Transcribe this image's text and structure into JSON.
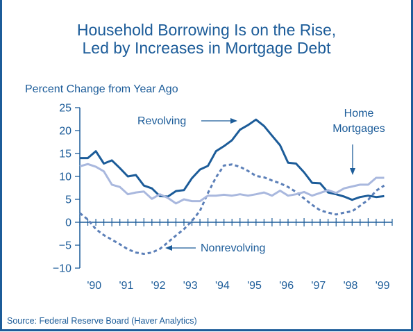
{
  "chart_data": {
    "type": "line",
    "title": [
      "Household Borrowing Is on the Rise,",
      "Led by Increases in Mortgage Debt"
    ],
    "ylabel": "Percent Change from Year Ago",
    "xlabel": "",
    "source": "Source: Federal Reserve Board (Haver Analytics)",
    "ylim": [
      -10,
      25
    ],
    "xlim": [
      1990.0,
      1999.75
    ],
    "yticks": [
      -10,
      -5,
      0,
      5,
      10,
      15,
      20,
      25
    ],
    "ytick_labels": [
      "−10",
      "−5",
      "0",
      "5",
      "10",
      "15",
      "20",
      "25"
    ],
    "xtick_labels": [
      "'90",
      "'91",
      "'92",
      "'93",
      "'94",
      "'95",
      "'96",
      "'97",
      "'98",
      "'99"
    ],
    "x": [
      1990.0,
      1990.25,
      1990.5,
      1990.75,
      1991.0,
      1991.25,
      1991.5,
      1991.75,
      1992.0,
      1992.25,
      1992.5,
      1992.75,
      1993.0,
      1993.25,
      1993.5,
      1993.75,
      1994.0,
      1994.25,
      1994.5,
      1994.75,
      1995.0,
      1995.25,
      1995.5,
      1995.75,
      1996.0,
      1996.25,
      1996.5,
      1996.75,
      1997.0,
      1997.25,
      1997.5,
      1997.75,
      1998.0,
      1998.25,
      1998.5,
      1998.75,
      1999.0,
      1999.25,
      1999.5
    ],
    "series": [
      {
        "name": "Revolving",
        "color": "#1c5c99",
        "style": "solid",
        "values": [
          14.0,
          14.0,
          15.5,
          12.8,
          13.5,
          11.8,
          10.0,
          10.3,
          8.0,
          7.4,
          5.7,
          5.6,
          6.8,
          7.0,
          9.6,
          11.5,
          12.3,
          15.5,
          16.6,
          17.9,
          20.2,
          21.2,
          22.4,
          21.0,
          18.9,
          16.8,
          13.0,
          12.8,
          10.9,
          8.6,
          8.5,
          6.5,
          6.1,
          5.6,
          4.9,
          5.5,
          5.8,
          5.5,
          5.7
        ]
      },
      {
        "name": "Nonrevolving",
        "color": "#5b7fb8",
        "style": "dashed",
        "values": [
          2.0,
          0.6,
          -1.5,
          -2.8,
          -3.8,
          -4.8,
          -5.9,
          -6.6,
          -6.9,
          -6.6,
          -5.8,
          -4.4,
          -2.9,
          -1.5,
          0.3,
          2.5,
          6.4,
          9.8,
          12.4,
          12.6,
          12.1,
          11.2,
          10.1,
          9.8,
          9.1,
          8.5,
          7.7,
          6.6,
          5.2,
          3.8,
          2.6,
          2.1,
          1.7,
          2.1,
          2.4,
          3.6,
          4.9,
          6.9,
          8.0
        ]
      },
      {
        "name": "Home Mortgages",
        "color": "#a9b8de",
        "style": "solid",
        "values": [
          12.2,
          12.7,
          12.1,
          11.1,
          8.2,
          7.7,
          6.1,
          6.5,
          6.7,
          5.1,
          6.1,
          5.3,
          4.1,
          5.0,
          4.6,
          4.6,
          5.8,
          5.8,
          6.0,
          5.8,
          6.1,
          5.8,
          6.1,
          6.5,
          5.8,
          6.9,
          5.8,
          6.1,
          6.6,
          5.8,
          6.4,
          7.0,
          6.4,
          7.4,
          7.8,
          8.2,
          8.2,
          9.7,
          9.7
        ]
      }
    ],
    "annotations": [
      {
        "text": "Revolving",
        "arrow": "right"
      },
      {
        "text": "Nonrevolving",
        "arrow": "left"
      },
      {
        "text": [
          "Home",
          "Mortgages"
        ],
        "arrow": "down"
      }
    ],
    "grid": false,
    "legend": "none"
  }
}
